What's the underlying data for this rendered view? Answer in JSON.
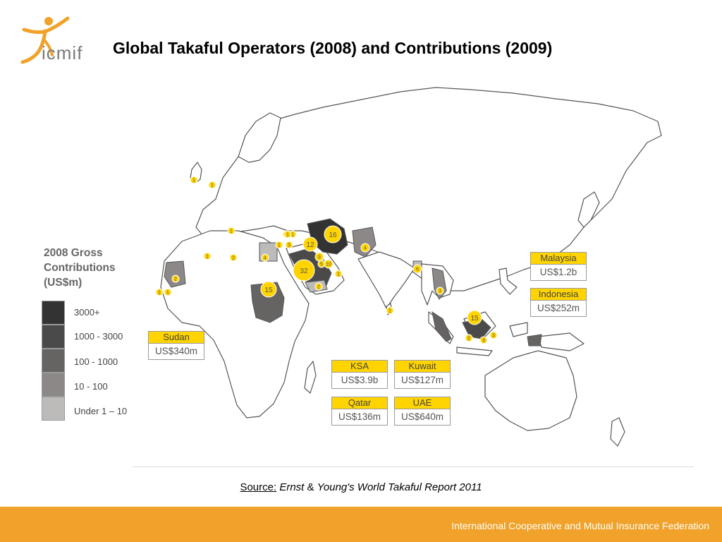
{
  "logo": {
    "text": "icmif",
    "colors": {
      "figure": "#f0a22a",
      "text": "#7a7a7a"
    }
  },
  "title": "Global Takaful Operators (2008) and Contributions (2009)",
  "legend": {
    "title_lines": [
      "2008 Gross",
      "Contributions",
      "(US$m)"
    ],
    "items": [
      {
        "label": "3000+",
        "color": "#333333"
      },
      {
        "label": "1000 - 3000",
        "color": "#4a4a4a"
      },
      {
        "label": "100 - 1000",
        "color": "#666363"
      },
      {
        "label": "10 - 100",
        "color": "#8c8888"
      },
      {
        "label": "Under 1 – 10",
        "color": "#bdbaba"
      }
    ]
  },
  "map": {
    "description_colors": {
      "land": "#ffffff",
      "border": "#555555",
      "marker": "#ffd400",
      "marker_text": "#555555"
    },
    "markers": [
      {
        "country": "United Kingdom",
        "count": "1"
      },
      {
        "country": "Belgium",
        "count": "1"
      },
      {
        "country": "Algeria",
        "count": "1"
      },
      {
        "country": "Tunisia",
        "count": "1"
      },
      {
        "country": "Libya",
        "count": "2"
      },
      {
        "country": "Mauritania",
        "count": "2"
      },
      {
        "country": "Senegal",
        "count": "1"
      },
      {
        "country": "Gambia",
        "count": "1"
      },
      {
        "country": "Egypt",
        "count": "4"
      },
      {
        "country": "Sudan",
        "count": "15"
      },
      {
        "country": "Turkey",
        "count": "1"
      },
      {
        "country": "Syria",
        "count": "1"
      },
      {
        "country": "Lebanon",
        "count": "1"
      },
      {
        "country": "Jordan",
        "count": "3"
      },
      {
        "country": "Iraq",
        "count": "1"
      },
      {
        "country": "Iran",
        "count": "16"
      },
      {
        "country": "Kuwait",
        "count": "12"
      },
      {
        "country": "Bahrain",
        "count": "9"
      },
      {
        "country": "Qatar",
        "count": "5"
      },
      {
        "country": "UAE",
        "count": "10"
      },
      {
        "country": "Saudi Arabia",
        "count": "32"
      },
      {
        "country": "Oman",
        "count": "1"
      },
      {
        "country": "Yemen",
        "count": "2"
      },
      {
        "country": "Pakistan",
        "count": "4"
      },
      {
        "country": "Bangladesh",
        "count": "6"
      },
      {
        "country": "Sri Lanka",
        "count": "1"
      },
      {
        "country": "Thailand",
        "count": "3"
      },
      {
        "country": "Malaysia",
        "count": "2"
      },
      {
        "country": "Brunei",
        "count": "15"
      },
      {
        "country": "Indonesia",
        "count": "3"
      },
      {
        "country": "Indonesia-2",
        "count": "3"
      }
    ]
  },
  "stat_boxes": [
    {
      "name": "Malaysia",
      "value": "US$1.2b"
    },
    {
      "name": "Indonesia",
      "value": "US$252m"
    },
    {
      "name": "Sudan",
      "value": "US$340m"
    },
    {
      "name": "KSA",
      "value": "US$3.9b"
    },
    {
      "name": "Kuwait",
      "value": "US$127m"
    },
    {
      "name": "Qatar",
      "value": "US$136m"
    },
    {
      "name": "UAE",
      "value": "US$640m"
    }
  ],
  "source": {
    "label": "Source:",
    "text_a": "Ernst",
    "amp": "&",
    "text_b": "Young's World Takaful Report 2011"
  },
  "footer": {
    "text": "International Cooperative and Mutual Insurance Federation",
    "color": "#f0a22a"
  }
}
